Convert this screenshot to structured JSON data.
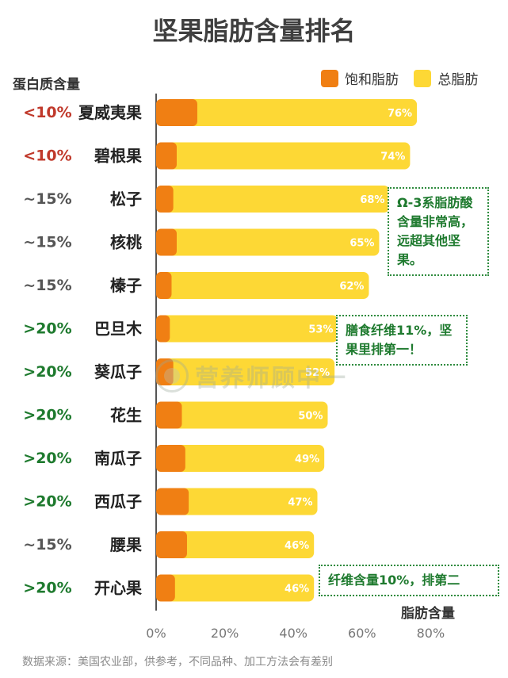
{
  "title": "坚果脂肪含量排名",
  "protein_header": "蛋白质含量",
  "xlabel": "脂肪含量",
  "footer": "数据来源：美国农业部，供参考，不同品种、加工方法会有差别",
  "watermark": "营养师顾中一",
  "colors": {
    "saturated": "#f07f13",
    "total": "#fdd835",
    "protein_low": "#c0392b",
    "protein_mid": "#555555",
    "protein_high": "#1e7a2e",
    "callout": "#1e7a2e"
  },
  "chart_data": {
    "type": "bar",
    "orientation": "horizontal",
    "title": "坚果脂肪含量排名",
    "xlabel": "脂肪含量",
    "xlim": [
      0,
      80
    ],
    "xticks": [
      "0%",
      "20%",
      "40%",
      "60%",
      "80%"
    ],
    "categories": [
      "夏威夷果",
      "碧根果",
      "松子",
      "核桃",
      "榛子",
      "巴旦木",
      "葵瓜子",
      "花生",
      "南瓜子",
      "西瓜子",
      "腰果",
      "开心果"
    ],
    "protein": [
      "<10%",
      "<10%",
      "~15%",
      "~15%",
      "~15%",
      ">20%",
      ">20%",
      ">20%",
      ">20%",
      ">20%",
      "~15%",
      ">20%"
    ],
    "protein_level": [
      "low",
      "low",
      "mid",
      "mid",
      "mid",
      "high",
      "high",
      "high",
      "high",
      "high",
      "mid",
      "high"
    ],
    "series": [
      {
        "name": "饱和脂肪",
        "values": [
          12,
          6,
          5,
          6,
          4.5,
          4,
          5,
          7.5,
          8.5,
          9.5,
          9,
          5.5
        ]
      },
      {
        "name": "总脂肪",
        "values": [
          76,
          74,
          68,
          65,
          62,
          53,
          52,
          50,
          49,
          47,
          46,
          46
        ]
      }
    ],
    "value_labels": [
      "76%",
      "74%",
      "68%",
      "65%",
      "62%",
      "53%",
      "52%",
      "50%",
      "49%",
      "47%",
      "46%",
      "46%"
    ],
    "legend_position": "top-right",
    "annotations": [
      {
        "category": "松子",
        "text": "Ω-3系脂肪酸含量非常高，远超其他坚果。"
      },
      {
        "category": "巴旦木",
        "text": "膳食纤维11%，坚果里排第一！"
      },
      {
        "category": "开心果",
        "text": "纤维含量10%，排第二"
      }
    ]
  }
}
